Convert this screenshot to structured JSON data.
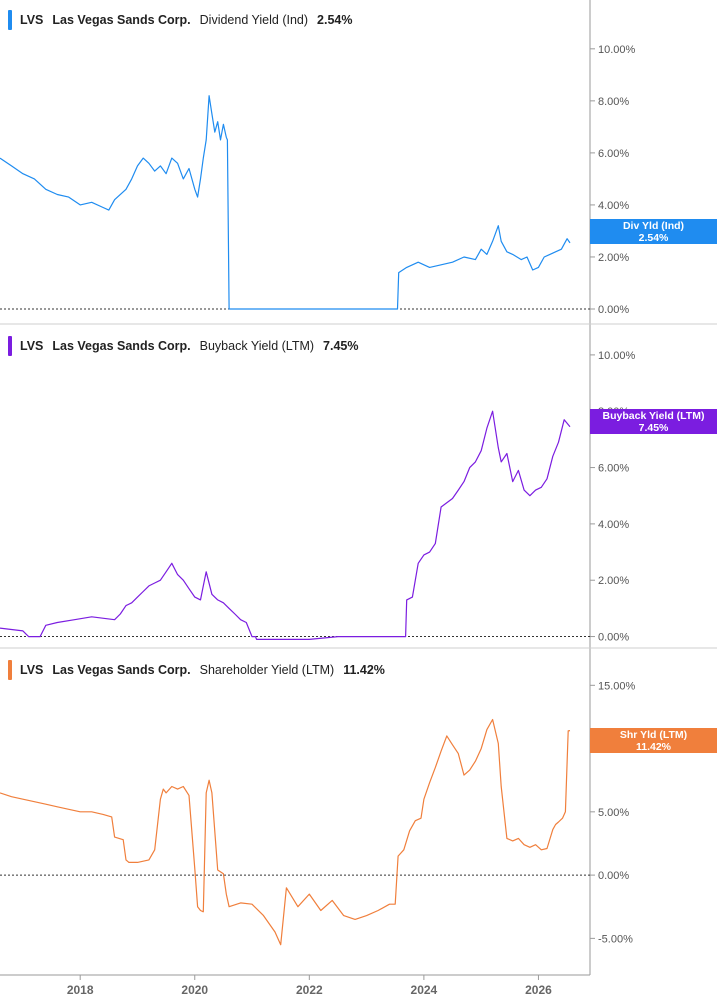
{
  "chart_data": [
    {
      "type": "line",
      "ticker": "LVS",
      "company": "Las Vegas Sands Corp.",
      "metric": "Dividend Yield (Ind)",
      "last_value": "2.54%",
      "badge_label": "Div Yld (Ind)",
      "badge_value": "2.54%",
      "color": "#1f8cf0",
      "ylim": [
        -0.5,
        11.3
      ],
      "yticks": [
        "10.00%",
        "8.00%",
        "6.00%",
        "4.00%",
        "2.00%",
        "0.00%"
      ],
      "ytick_values": [
        10,
        8,
        6,
        4,
        2,
        0
      ],
      "zero_line": true,
      "series": [
        {
          "x": [
            2016.6,
            2016.8,
            2017.0,
            2017.2,
            2017.4,
            2017.6,
            2017.8,
            2018.0,
            2018.2,
            2018.4,
            2018.5,
            2018.6,
            2018.8,
            2018.9,
            2019.0,
            2019.1,
            2019.2,
            2019.3,
            2019.4,
            2019.5,
            2019.6,
            2019.7,
            2019.8,
            2019.9,
            2020.0,
            2020.05,
            2020.1,
            2020.15,
            2020.2,
            2020.25,
            2020.3,
            2020.35,
            2020.4,
            2020.45,
            2020.5,
            2020.55,
            2020.57,
            2020.6,
            2021.0,
            2021.5,
            2022.0,
            2022.5,
            2023.0,
            2023.4,
            2023.54,
            2023.56,
            2023.7,
            2023.9,
            2024.1,
            2024.3,
            2024.5,
            2024.7,
            2024.9,
            2025.0,
            2025.1,
            2025.2,
            2025.3,
            2025.35,
            2025.45,
            2025.55,
            2025.7,
            2025.8,
            2025.9,
            2026.0,
            2026.1,
            2026.2,
            2026.3,
            2026.4,
            2026.5,
            2026.55
          ],
          "y": [
            5.8,
            5.5,
            5.2,
            5.0,
            4.6,
            4.4,
            4.3,
            4.0,
            4.1,
            3.9,
            3.8,
            4.2,
            4.6,
            5.0,
            5.5,
            5.8,
            5.6,
            5.3,
            5.5,
            5.2,
            5.8,
            5.6,
            5.0,
            5.4,
            4.6,
            4.3,
            5.0,
            5.8,
            6.5,
            8.2,
            7.5,
            6.8,
            7.2,
            6.5,
            7.1,
            6.6,
            6.5,
            0.0,
            0.0,
            0.0,
            0.0,
            0.0,
            0.0,
            0.0,
            0.0,
            1.4,
            1.6,
            1.8,
            1.6,
            1.7,
            1.8,
            2.0,
            1.9,
            2.3,
            2.1,
            2.6,
            3.2,
            2.6,
            2.2,
            2.1,
            1.9,
            2.0,
            1.5,
            1.6,
            2.0,
            2.1,
            2.2,
            2.3,
            2.7,
            2.54
          ]
        }
      ]
    },
    {
      "type": "line",
      "ticker": "LVS",
      "company": "Las Vegas Sands Corp.",
      "metric": "Buyback Yield (LTM)",
      "last_value": "7.45%",
      "badge_label": "Buyback Yield (LTM)",
      "badge_value": "7.45%",
      "color": "#7b1de0",
      "ylim": [
        -0.3,
        10.6
      ],
      "yticks": [
        "10.00%",
        "8.00%",
        "6.00%",
        "4.00%",
        "2.00%",
        "0.00%"
      ],
      "ytick_values": [
        10,
        8,
        6,
        4,
        2,
        0
      ],
      "zero_line": true,
      "series": [
        {
          "x": [
            2016.6,
            2017.0,
            2017.1,
            2017.3,
            2017.4,
            2017.6,
            2017.9,
            2018.2,
            2018.6,
            2018.7,
            2018.8,
            2018.9,
            2019.0,
            2019.1,
            2019.2,
            2019.3,
            2019.4,
            2019.5,
            2019.6,
            2019.7,
            2019.8,
            2019.9,
            2020.0,
            2020.1,
            2020.15,
            2020.2,
            2020.3,
            2020.4,
            2020.5,
            2020.6,
            2020.7,
            2020.8,
            2020.9,
            2021.0,
            2021.06,
            2021.08,
            2021.5,
            2022.0,
            2022.5,
            2023.0,
            2023.5,
            2023.68,
            2023.7,
            2023.8,
            2023.9,
            2024.0,
            2024.1,
            2024.2,
            2024.3,
            2024.5,
            2024.6,
            2024.7,
            2024.8,
            2024.9,
            2025.0,
            2025.1,
            2025.2,
            2025.3,
            2025.35,
            2025.45,
            2025.55,
            2025.65,
            2025.75,
            2025.85,
            2025.95,
            2026.05,
            2026.15,
            2026.25,
            2026.35,
            2026.45,
            2026.55
          ],
          "y": [
            0.3,
            0.2,
            0.0,
            0.0,
            0.4,
            0.5,
            0.6,
            0.7,
            0.6,
            0.8,
            1.1,
            1.2,
            1.4,
            1.6,
            1.8,
            1.9,
            2.0,
            2.3,
            2.6,
            2.2,
            2.0,
            1.7,
            1.4,
            1.3,
            1.8,
            2.3,
            1.5,
            1.3,
            1.2,
            1.0,
            0.8,
            0.6,
            0.5,
            0.0,
            0.0,
            -0.1,
            -0.1,
            -0.1,
            0.0,
            0.0,
            0.0,
            0.0,
            1.3,
            1.4,
            2.6,
            2.9,
            3.0,
            3.3,
            4.6,
            4.9,
            5.2,
            5.5,
            6.0,
            6.2,
            6.6,
            7.4,
            8.0,
            6.7,
            6.2,
            6.5,
            5.5,
            5.9,
            5.2,
            5.0,
            5.2,
            5.3,
            5.6,
            6.4,
            6.9,
            7.7,
            7.45
          ]
        }
      ]
    },
    {
      "type": "line",
      "ticker": "LVS",
      "company": "Las Vegas Sands Corp.",
      "metric": "Shareholder Yield (LTM)",
      "last_value": "11.42%",
      "badge_label": "Shr Yld (LTM)",
      "badge_value": "11.42%",
      "color": "#f07f3c",
      "ylim": [
        -7.5,
        17.0
      ],
      "yticks": [
        "15.00%",
        "10.00%",
        "5.00%",
        "0.00%",
        "-5.00%"
      ],
      "ytick_values": [
        15,
        10,
        5,
        0,
        -5
      ],
      "zero_line": true,
      "series": [
        {
          "x": [
            2016.6,
            2016.8,
            2017.0,
            2017.2,
            2017.4,
            2017.6,
            2017.8,
            2018.0,
            2018.2,
            2018.4,
            2018.55,
            2018.6,
            2018.75,
            2018.8,
            2018.85,
            2019.0,
            2019.2,
            2019.3,
            2019.4,
            2019.45,
            2019.5,
            2019.6,
            2019.7,
            2019.8,
            2019.9,
            2020.0,
            2020.05,
            2020.1,
            2020.15,
            2020.2,
            2020.25,
            2020.3,
            2020.4,
            2020.5,
            2020.55,
            2020.6,
            2020.8,
            2021.0,
            2021.2,
            2021.4,
            2021.5,
            2021.6,
            2021.8,
            2022.0,
            2022.2,
            2022.4,
            2022.6,
            2022.8,
            2023.0,
            2023.2,
            2023.4,
            2023.5,
            2023.55,
            2023.65,
            2023.75,
            2023.85,
            2023.95,
            2024.0,
            2024.1,
            2024.2,
            2024.3,
            2024.4,
            2024.5,
            2024.6,
            2024.7,
            2024.8,
            2024.9,
            2025.0,
            2025.1,
            2025.2,
            2025.3,
            2025.35,
            2025.45,
            2025.55,
            2025.65,
            2025.75,
            2025.85,
            2025.95,
            2026.05,
            2026.15,
            2026.25,
            2026.3,
            2026.35,
            2026.42,
            2026.47,
            2026.52,
            2026.55
          ],
          "y": [
            6.5,
            6.2,
            6.0,
            5.8,
            5.6,
            5.4,
            5.2,
            5.0,
            5.0,
            4.8,
            4.6,
            3.0,
            2.8,
            1.2,
            1.0,
            1.0,
            1.2,
            2.0,
            6.0,
            6.8,
            6.5,
            7.0,
            6.8,
            7.0,
            6.3,
            0.5,
            -2.5,
            -2.8,
            -2.9,
            6.5,
            7.5,
            6.5,
            0.4,
            0.1,
            -1.5,
            -2.5,
            -2.2,
            -2.3,
            -3.2,
            -4.5,
            -5.5,
            -1.0,
            -2.5,
            -1.5,
            -2.8,
            -2.0,
            -3.2,
            -3.5,
            -3.2,
            -2.8,
            -2.3,
            -2.3,
            1.5,
            2.0,
            3.5,
            4.3,
            4.5,
            6.0,
            7.3,
            8.5,
            9.8,
            11.0,
            10.3,
            9.6,
            7.9,
            8.3,
            9.0,
            10.0,
            11.5,
            12.3,
            10.4,
            7.0,
            2.9,
            2.7,
            2.9,
            2.4,
            2.2,
            2.4,
            2.0,
            2.1,
            3.6,
            4.0,
            4.2,
            4.5,
            5.0,
            11.4,
            11.42
          ]
        }
      ]
    }
  ],
  "x_axis": {
    "ticks": [
      "2018",
      "2020",
      "2022",
      "2024",
      "2026"
    ],
    "tick_values": [
      2018,
      2020,
      2022,
      2024,
      2026
    ],
    "xlim": [
      2016.6,
      2026.9
    ]
  }
}
